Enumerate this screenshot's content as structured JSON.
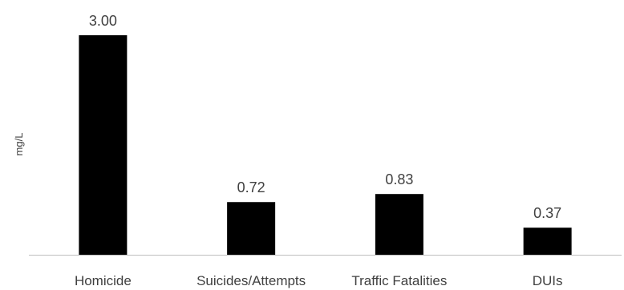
{
  "chart_data": {
    "type": "bar",
    "title": "",
    "xlabel": "",
    "ylabel": "mg/L",
    "categories": [
      "Homicide",
      "Suicides/Attempts",
      "Traffic Fatalities",
      "DUIs"
    ],
    "values": [
      3.0,
      0.72,
      0.83,
      0.37
    ],
    "value_labels": [
      "3.00",
      "0.72",
      "0.83",
      "0.37"
    ],
    "ylim": [
      0,
      3.0
    ],
    "grid": false,
    "legend": "none",
    "bar_color": "#000000",
    "axis_color": "#bfbfbf",
    "text_color": "#404040"
  }
}
